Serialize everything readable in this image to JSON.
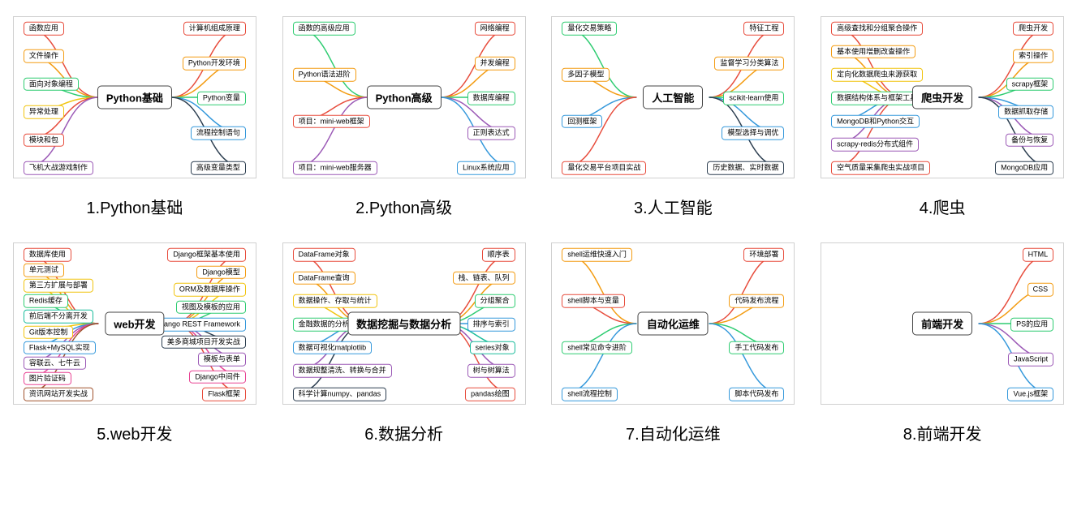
{
  "background_color": "#ffffff",
  "card_border_color": "#d0d0d0",
  "caption_fontsize": 20,
  "center_fontsize": 13,
  "leaf_fontsize": 9,
  "palette": {
    "red": "#e74c3c",
    "orange": "#f39c12",
    "yellow": "#f1c40f",
    "green": "#2ecc71",
    "teal": "#1abc9c",
    "blue": "#3498db",
    "navy": "#2c3e50",
    "purple": "#9b59b6",
    "pink": "#e84393",
    "brown": "#a0522d"
  },
  "maps": [
    {
      "id": "python-basics",
      "caption": "1.Python基础",
      "center": "Python基础",
      "left": [
        {
          "label": "函数应用",
          "color": "#e74c3c"
        },
        {
          "label": "文件操作",
          "color": "#f39c12"
        },
        {
          "label": "面向对象编程",
          "color": "#2ecc71"
        },
        {
          "label": "异常处理",
          "color": "#f1c40f"
        },
        {
          "label": "模块和包",
          "color": "#e74c3c"
        },
        {
          "label": "飞机大战游戏制作",
          "color": "#9b59b6"
        }
      ],
      "right": [
        {
          "label": "计算机组成原理",
          "color": "#e74c3c"
        },
        {
          "label": "Python开发环境",
          "color": "#f39c12"
        },
        {
          "label": "Python变量",
          "color": "#2ecc71"
        },
        {
          "label": "流程控制语句",
          "color": "#3498db"
        },
        {
          "label": "高级变量类型",
          "color": "#2c3e50"
        }
      ]
    },
    {
      "id": "python-advanced",
      "caption": "2.Python高级",
      "center": "Python高级",
      "left": [
        {
          "label": "函数的高级应用",
          "color": "#2ecc71"
        },
        {
          "label": "Python语法进阶",
          "color": "#f39c12"
        },
        {
          "label": "项目：mini-web框架",
          "color": "#e74c3c"
        },
        {
          "label": "项目：mini-web服务器",
          "color": "#9b59b6"
        }
      ],
      "right": [
        {
          "label": "网络编程",
          "color": "#e74c3c"
        },
        {
          "label": "并发编程",
          "color": "#f39c12"
        },
        {
          "label": "数据库编程",
          "color": "#2ecc71"
        },
        {
          "label": "正则表达式",
          "color": "#9b59b6"
        },
        {
          "label": "Linux系统应用",
          "color": "#3498db"
        }
      ]
    },
    {
      "id": "ai",
      "caption": "3.人工智能",
      "center": "人工智能",
      "left": [
        {
          "label": "量化交易策略",
          "color": "#2ecc71"
        },
        {
          "label": "多因子模型",
          "color": "#f39c12"
        },
        {
          "label": "回测框架",
          "color": "#3498db"
        },
        {
          "label": "量化交易平台项目实战",
          "color": "#e74c3c"
        }
      ],
      "right": [
        {
          "label": "特征工程",
          "color": "#e74c3c"
        },
        {
          "label": "监督学习分类算法",
          "color": "#f39c12"
        },
        {
          "label": "scikit-learn使用",
          "color": "#2ecc71"
        },
        {
          "label": "模型选择与调优",
          "color": "#3498db"
        },
        {
          "label": "历史数据、实时数据",
          "color": "#2c3e50"
        }
      ]
    },
    {
      "id": "crawler",
      "caption": "4.爬虫",
      "center": "爬虫开发",
      "left": [
        {
          "label": "高级查找和分组聚合操作",
          "color": "#e74c3c"
        },
        {
          "label": "基本使用增删改查操作",
          "color": "#f39c12"
        },
        {
          "label": "定向化数据爬虫来源获取",
          "color": "#f1c40f"
        },
        {
          "label": "数据结构体系与框架工具",
          "color": "#2ecc71"
        },
        {
          "label": "MongoDB和Python交互",
          "color": "#3498db"
        },
        {
          "label": "scrapy-redis分布式组件",
          "color": "#9b59b6"
        },
        {
          "label": "空气质量采集爬虫实战项目",
          "color": "#e74c3c"
        }
      ],
      "right": [
        {
          "label": "爬虫开发",
          "color": "#e74c3c"
        },
        {
          "label": "索引操作",
          "color": "#f39c12"
        },
        {
          "label": "scrapy框架",
          "color": "#2ecc71"
        },
        {
          "label": "数据抓取存储",
          "color": "#3498db"
        },
        {
          "label": "备份与恢复",
          "color": "#9b59b6"
        },
        {
          "label": "MongoDB应用",
          "color": "#2c3e50"
        }
      ]
    },
    {
      "id": "web-dev",
      "caption": "5.web开发",
      "center": "web开发",
      "left": [
        {
          "label": "数据库使用",
          "color": "#e74c3c"
        },
        {
          "label": "单元测试",
          "color": "#f39c12"
        },
        {
          "label": "第三方扩展与部署",
          "color": "#f1c40f"
        },
        {
          "label": "Redis缓存",
          "color": "#2ecc71"
        },
        {
          "label": "前后端不分离开发",
          "color": "#1abc9c"
        },
        {
          "label": "Git版本控制",
          "color": "#f1c40f"
        },
        {
          "label": "Flask+MySQL实现",
          "color": "#3498db"
        },
        {
          "label": "容联云、七牛云",
          "color": "#9b59b6"
        },
        {
          "label": "图片验证码",
          "color": "#e84393"
        },
        {
          "label": "资讯网站开发实战",
          "color": "#a0522d"
        }
      ],
      "right": [
        {
          "label": "Django框架基本使用",
          "color": "#e74c3c"
        },
        {
          "label": "Django模型",
          "color": "#f39c12"
        },
        {
          "label": "ORM及数据库操作",
          "color": "#f1c40f"
        },
        {
          "label": "视图及模板的应用",
          "color": "#2ecc71"
        },
        {
          "label": "Django REST Framework",
          "color": "#3498db"
        },
        {
          "label": "美多商城项目开发实战",
          "color": "#2c3e50"
        },
        {
          "label": "模板与表单",
          "color": "#9b59b6"
        },
        {
          "label": "Django中间件",
          "color": "#e84393"
        },
        {
          "label": "Flask框架",
          "color": "#e74c3c"
        }
      ]
    },
    {
      "id": "data-analysis",
      "caption": "6.数据分析",
      "center": "数据挖掘与数据分析",
      "left": [
        {
          "label": "DataFrame对象",
          "color": "#e74c3c"
        },
        {
          "label": "DataFrame查询",
          "color": "#f39c12"
        },
        {
          "label": "数据操作、存取与统计",
          "color": "#f1c40f"
        },
        {
          "label": "金融数据的分析和处理",
          "color": "#2ecc71"
        },
        {
          "label": "数据可视化matplotlib",
          "color": "#3498db"
        },
        {
          "label": "数据规整清洗、转换与合并",
          "color": "#9b59b6"
        },
        {
          "label": "科学计算numpy、pandas",
          "color": "#2c3e50"
        }
      ],
      "right": [
        {
          "label": "顺序表",
          "color": "#e74c3c"
        },
        {
          "label": "栈、链表、队列",
          "color": "#f39c12"
        },
        {
          "label": "分组聚合",
          "color": "#2ecc71"
        },
        {
          "label": "排序与索引",
          "color": "#3498db"
        },
        {
          "label": "series对象",
          "color": "#1abc9c"
        },
        {
          "label": "树与树算法",
          "color": "#9b59b6"
        },
        {
          "label": "pandas绘图",
          "color": "#e74c3c"
        }
      ]
    },
    {
      "id": "devops",
      "caption": "7.自动化运维",
      "center": "自动化运维",
      "left": [
        {
          "label": "shell运维快速入门",
          "color": "#f39c12"
        },
        {
          "label": "shell脚本与变量",
          "color": "#e74c3c"
        },
        {
          "label": "shell常见命令进阶",
          "color": "#2ecc71"
        },
        {
          "label": "shell流程控制",
          "color": "#3498db"
        }
      ],
      "right": [
        {
          "label": "环境部署",
          "color": "#e74c3c"
        },
        {
          "label": "代码发布流程",
          "color": "#f39c12"
        },
        {
          "label": "手工代码发布",
          "color": "#2ecc71"
        },
        {
          "label": "脚本代码发布",
          "color": "#3498db"
        }
      ]
    },
    {
      "id": "frontend",
      "caption": "8.前端开发",
      "center": "前端开发",
      "left": [],
      "right": [
        {
          "label": "HTML",
          "color": "#e74c3c"
        },
        {
          "label": "CSS",
          "color": "#f39c12"
        },
        {
          "label": "PS的应用",
          "color": "#2ecc71"
        },
        {
          "label": "JavaScript",
          "color": "#9b59b6"
        },
        {
          "label": "Vue.js框架",
          "color": "#3498db"
        }
      ]
    }
  ]
}
